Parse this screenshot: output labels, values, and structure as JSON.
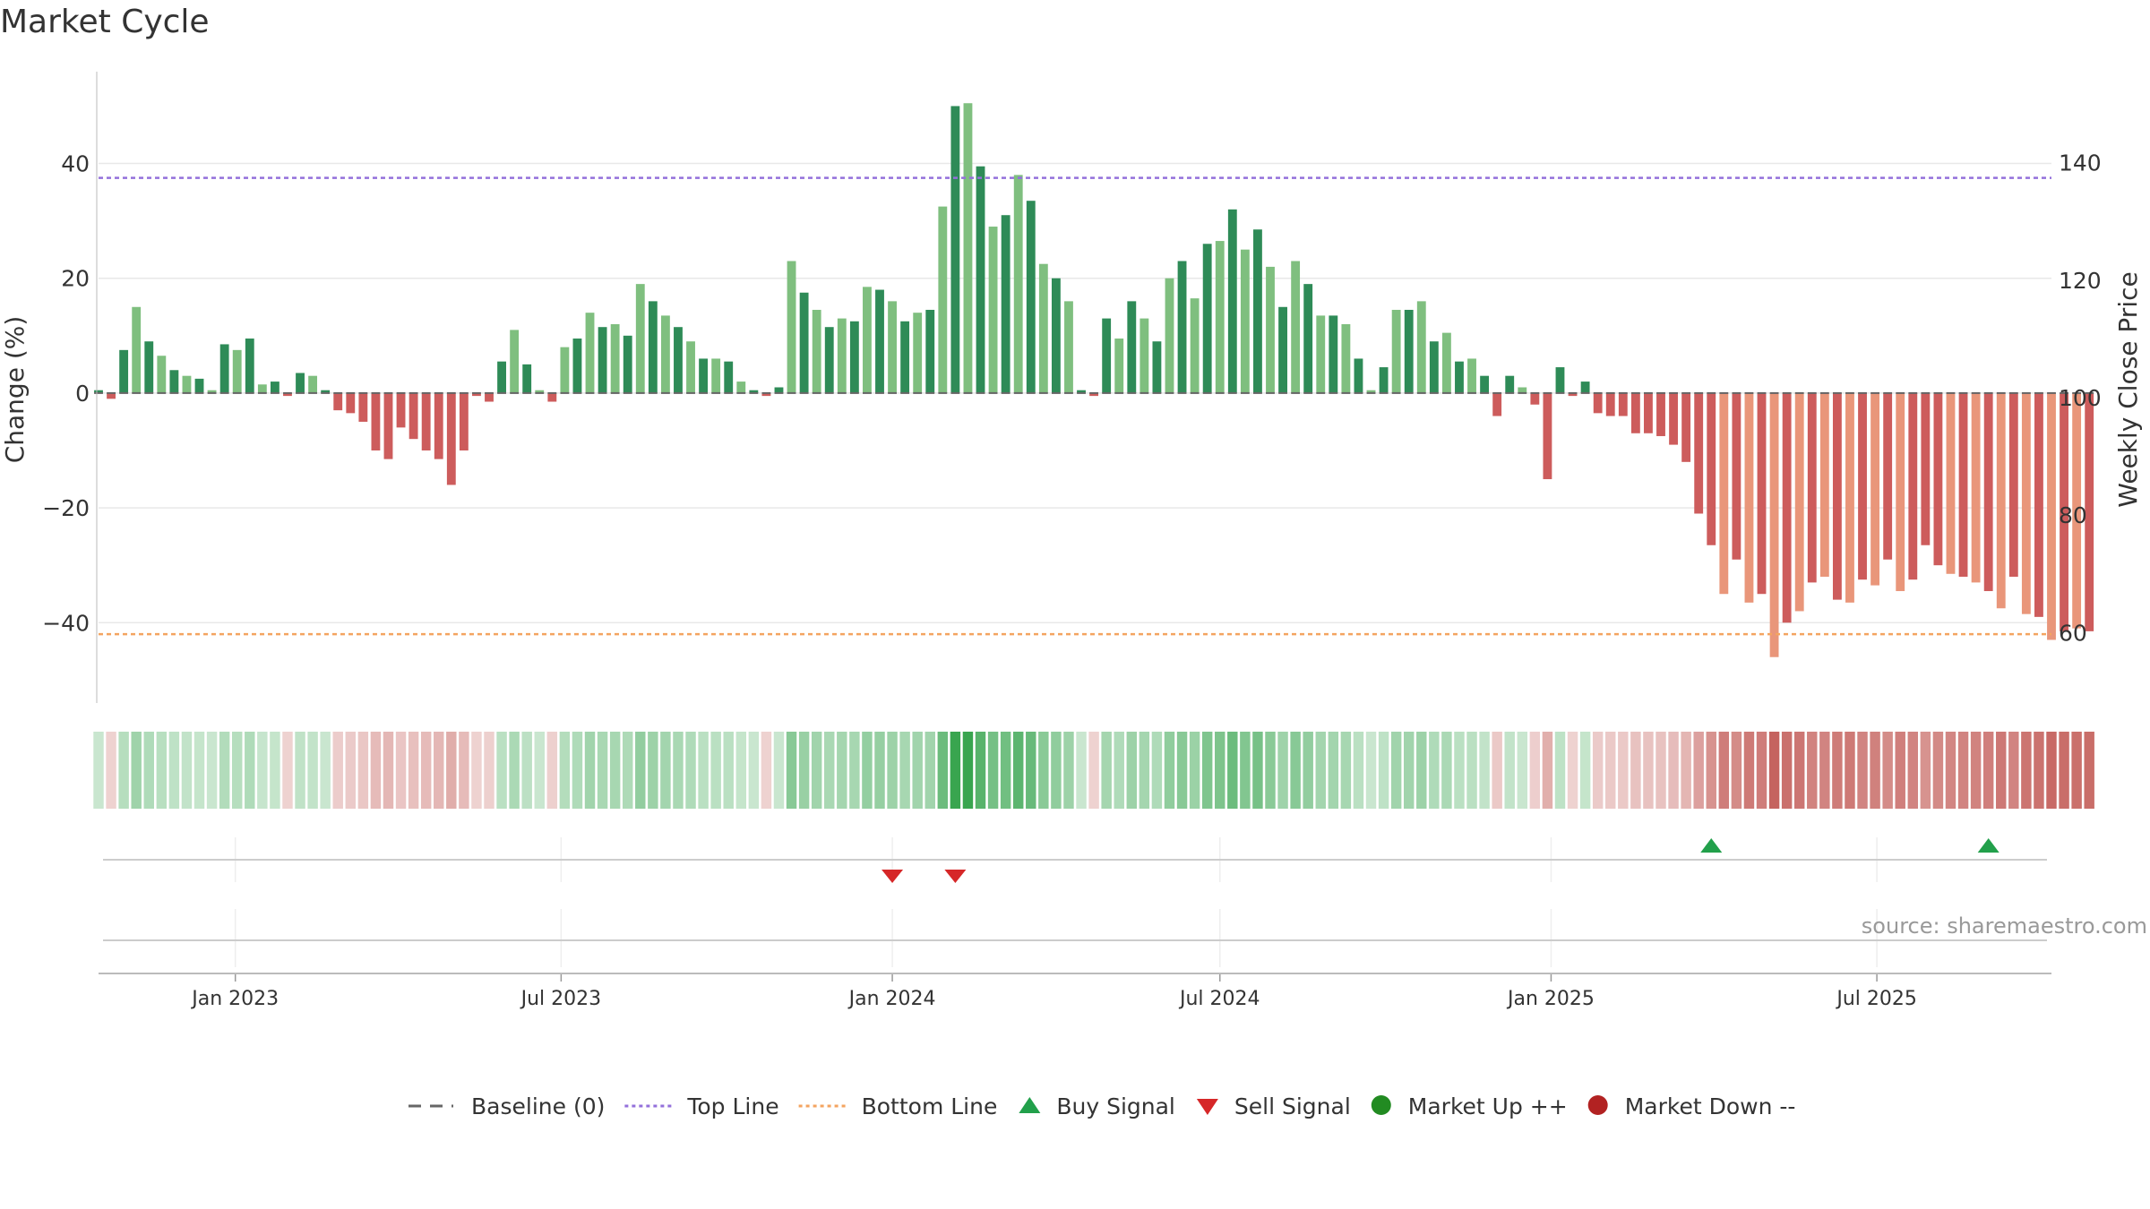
{
  "chart_data": {
    "type": "bar",
    "title": "Market Cycle",
    "ylabel": "Change (%)",
    "y2label": "Weekly Close Price",
    "ylim": [
      -54,
      56
    ],
    "y2lim": [
      48.0,
      155.5
    ],
    "y_ticks": [
      -40,
      -20,
      0,
      20,
      40
    ],
    "y_tick_labels": [
      "−40",
      "−20",
      "0",
      "20",
      "40"
    ],
    "y2_ticks": [
      60,
      80,
      100,
      120,
      140
    ],
    "y2_tick_labels": [
      "60",
      "80",
      "100",
      "120",
      "140"
    ],
    "x_range": [
      "2022-10-17",
      "2025-10-06"
    ],
    "x_ticks": [
      "2023-01-01",
      "2023-07-01",
      "2024-01-01",
      "2024-07-01",
      "2025-01-01",
      "2025-07-01"
    ],
    "x_tick_labels": [
      "Jan 2023",
      "Jul 2023",
      "Jan 2024",
      "Jul 2024",
      "Jan 2025",
      "Jul 2025"
    ],
    "grid": true,
    "legend_position": "bottom",
    "series": [
      {
        "name": "Change (%)",
        "start_date": "2022-10-17",
        "interval_days": 7,
        "values": [
          0.5,
          -1.0,
          7.5,
          15.0,
          9.0,
          6.5,
          4.0,
          3.0,
          2.5,
          0.5,
          8.5,
          7.5,
          9.5,
          1.5,
          2.0,
          -0.5,
          3.5,
          3.0,
          0.5,
          -3.0,
          -3.5,
          -5.0,
          -10.0,
          -11.5,
          -6.0,
          -8.0,
          -10.0,
          -11.5,
          -16.0,
          -10.0,
          -0.5,
          -1.5,
          5.5,
          11.0,
          5.0,
          0.5,
          -1.5,
          8.0,
          9.5,
          14.0,
          11.5,
          12.0,
          10.0,
          19.0,
          16.0,
          13.5,
          11.5,
          9.0,
          6.0,
          6.0,
          5.5,
          2.0,
          0.5,
          -0.5,
          1.0,
          23.0,
          17.5,
          14.5,
          11.5,
          13.0,
          12.5,
          18.5,
          18.0,
          16.0,
          12.5,
          14.0,
          14.5,
          32.5,
          50.0,
          50.5,
          39.5,
          29.0,
          31.0,
          38.0,
          33.5,
          22.5,
          20.0,
          16.0,
          0.5,
          -0.5,
          13.0,
          9.5,
          16.0,
          13.0,
          9.0,
          20.0,
          23.0,
          16.5,
          26.0,
          26.5,
          32.0,
          25.0,
          28.5,
          22.0,
          15.0,
          23.0,
          19.0,
          13.5,
          13.5,
          12.0,
          6.0,
          0.5,
          4.5,
          14.5,
          14.5,
          16.0,
          9.0,
          10.5,
          5.5,
          6.0,
          3.0,
          -4.0,
          3.0,
          1.0,
          -2.0,
          -15.0,
          4.5,
          -0.5,
          2.0,
          -3.5,
          -4.0,
          -4.0,
          -7.0,
          -7.0,
          -7.5,
          -9.0,
          -12.0,
          -21.0,
          -26.5,
          -35.0,
          -29.0,
          -36.5,
          -35.0,
          -46.0,
          -40.0,
          -38.0,
          -33.0,
          -32.0,
          -36.0,
          -36.5,
          -32.5,
          -33.5,
          -29.0,
          -34.5,
          -32.5,
          -26.5,
          -30.0,
          -31.5,
          -32.0,
          -33.0,
          -34.5,
          -37.5,
          -32.0,
          -38.5,
          -39.0,
          -43.0,
          -41.5,
          -41.0,
          -41.5
        ]
      }
    ],
    "heat_strip": {
      "description": "per-week colour intensity strip mirroring the change series"
    },
    "buy_signals": [
      "2025-03-31",
      "2025-09-01"
    ],
    "sell_signals": [
      "2024-01-01",
      "2024-02-05"
    ],
    "colors": {
      "up_strong": "#2e8b57",
      "up_weak": "#7fbf7f",
      "down_strong": "#cd5c5c",
      "down_weak": "#e9967a",
      "top_line": "#9370db",
      "bottom_line": "#f4a460",
      "buy": "#22a04b",
      "sell": "#d62728",
      "market_up": "#228b22",
      "market_down": "#b22222",
      "baseline": "#666666"
    },
    "top_line_value": 37.5,
    "bottom_line_value": -42.0
  },
  "legend": {
    "items": [
      {
        "label": "Baseline (0)",
        "kind": "dash",
        "color": "#666666"
      },
      {
        "label": "Top Line",
        "kind": "dot",
        "color": "#9370db"
      },
      {
        "label": "Bottom Line",
        "kind": "dot",
        "color": "#f4a460"
      },
      {
        "label": "Buy Signal",
        "kind": "tri-up",
        "color": "#22a04b"
      },
      {
        "label": "Sell Signal",
        "kind": "tri-down",
        "color": "#d62728"
      },
      {
        "label": "Market Up ++",
        "kind": "circle",
        "color": "#228b22"
      },
      {
        "label": "Market Down --",
        "kind": "circle",
        "color": "#b22222"
      }
    ]
  },
  "source_text": "source: sharemaestro.com"
}
